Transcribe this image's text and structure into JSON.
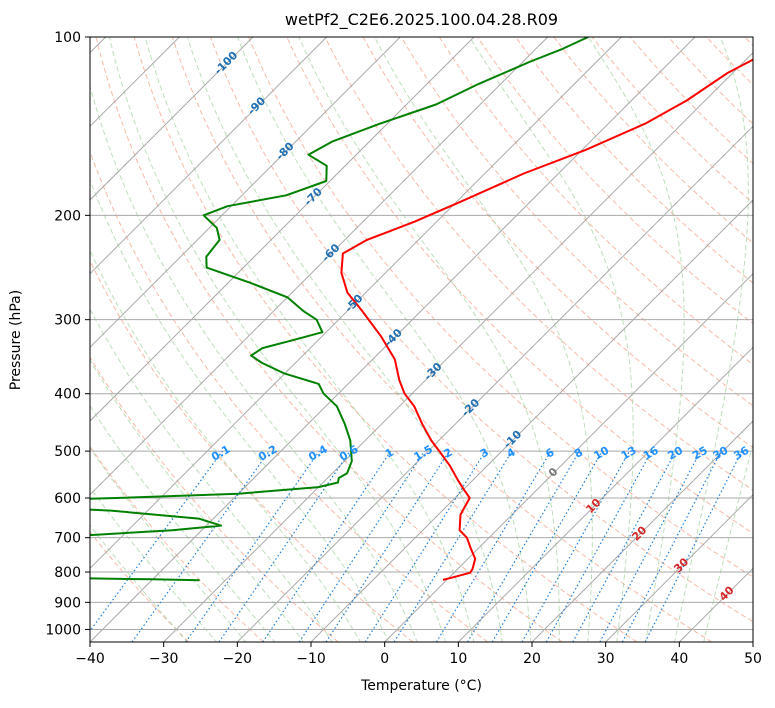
{
  "chart_data": {
    "type": "line",
    "title": "wetPf2_C2E6.2025.100.04.28.R09",
    "xlabel": "Temperature (°C)",
    "ylabel": "Pressure (hPa)",
    "xlim": [
      -40,
      50
    ],
    "ylim_pressure": [
      1050,
      100
    ],
    "y_scale": "log",
    "skew": true,
    "grid": true,
    "x_ticks": [
      "−40",
      "−30",
      "−20",
      "−10",
      "0",
      "10",
      "20",
      "30",
      "40",
      "50"
    ],
    "x_tick_values": [
      -40,
      -30,
      -20,
      -10,
      0,
      10,
      20,
      30,
      40,
      50
    ],
    "y_ticks": [
      "100",
      "200",
      "300",
      "400",
      "500",
      "600",
      "700",
      "800",
      "900",
      "1000"
    ],
    "y_tick_values": [
      100,
      200,
      300,
      400,
      500,
      600,
      700,
      800,
      900,
      1000
    ],
    "isotherm_labels": [
      {
        "t": -100,
        "text": "-100"
      },
      {
        "t": -90,
        "text": "-90"
      },
      {
        "t": -80,
        "text": "-80"
      },
      {
        "t": -70,
        "text": "-70"
      },
      {
        "t": -60,
        "text": "-60"
      },
      {
        "t": -50,
        "text": "-50"
      },
      {
        "t": -40,
        "text": "-40"
      },
      {
        "t": -30,
        "text": "-30"
      },
      {
        "t": -20,
        "text": "-20"
      },
      {
        "t": -10,
        "text": "-10"
      },
      {
        "t": 0,
        "text": "0"
      },
      {
        "t": 10,
        "text": "10"
      },
      {
        "t": 20,
        "text": "20"
      },
      {
        "t": 30,
        "text": "30"
      },
      {
        "t": 40,
        "text": "40"
      }
    ],
    "mixing_ratio_labels": [
      "0.1",
      "0.2",
      "0.4",
      "0.6",
      "1",
      "1.5",
      "2",
      "3",
      "4",
      "6",
      "8",
      "10",
      "13",
      "16",
      "20",
      "25",
      "30",
      "36"
    ],
    "mixing_ratio_values": [
      0.1,
      0.2,
      0.4,
      0.6,
      1,
      1.5,
      2,
      3,
      4,
      6,
      8,
      10,
      13,
      16,
      20,
      25,
      30,
      36
    ],
    "series": [
      {
        "color": "#ff0000",
        "points": [
          [
            100,
            -26.3
          ],
          [
            115,
            -30.7
          ],
          [
            128,
            -32.5
          ],
          [
            140,
            -35.0
          ],
          [
            155,
            -39.5
          ],
          [
            170,
            -44.7
          ],
          [
            190,
            -49.5
          ],
          [
            205,
            -53.0
          ],
          [
            220,
            -57.0
          ],
          [
            232,
            -58.4
          ],
          [
            250,
            -56.0
          ],
          [
            270,
            -52.5
          ],
          [
            290,
            -48.0
          ],
          [
            320,
            -42.0
          ],
          [
            350,
            -37.0
          ],
          [
            380,
            -33.5
          ],
          [
            400,
            -31.0
          ],
          [
            420,
            -28.0
          ],
          [
            450,
            -24.5
          ],
          [
            480,
            -21.0
          ],
          [
            500,
            -18.5
          ],
          [
            530,
            -15.0
          ],
          [
            560,
            -12.0
          ],
          [
            580,
            -10.0
          ],
          [
            600,
            -8.0
          ],
          [
            640,
            -7.0
          ],
          [
            680,
            -5.0
          ],
          [
            700,
            -3.0
          ],
          [
            730,
            -1.0
          ],
          [
            760,
            1.0
          ],
          [
            790,
            2.0
          ],
          [
            802,
            2.2
          ],
          [
            815,
            0.7
          ],
          [
            825,
            -0.5
          ]
        ]
      },
      {
        "color": "#008000",
        "points": [
          [
            100,
            -54.5
          ],
          [
            105,
            -56.5
          ],
          [
            110,
            -59.0
          ],
          [
            120,
            -63.0
          ],
          [
            130,
            -66.0
          ],
          [
            140,
            -71.0
          ],
          [
            150,
            -75.0
          ],
          [
            158,
            -76.5
          ],
          [
            165,
            -72.5
          ],
          [
            175,
            -70.5
          ],
          [
            185,
            -74.0
          ],
          [
            193,
            -80.5
          ],
          [
            200,
            -82.5
          ],
          [
            210,
            -79.0
          ],
          [
            220,
            -77.0
          ],
          [
            235,
            -76.5
          ],
          [
            245,
            -75.0
          ],
          [
            260,
            -67.0
          ],
          [
            275,
            -60.0
          ],
          [
            290,
            -56.0
          ],
          [
            300,
            -53.0
          ],
          [
            315,
            -50.5
          ],
          [
            325,
            -53.5
          ],
          [
            335,
            -56.5
          ],
          [
            345,
            -57.0
          ],
          [
            355,
            -54.5
          ],
          [
            370,
            -50.0
          ],
          [
            385,
            -44.0
          ],
          [
            400,
            -42.0
          ],
          [
            420,
            -38.5
          ],
          [
            450,
            -35.0
          ],
          [
            480,
            -32.0
          ],
          [
            520,
            -29.0
          ],
          [
            545,
            -28.0
          ],
          [
            555,
            -28.5
          ],
          [
            565,
            -28.0
          ],
          [
            575,
            -30.0
          ],
          [
            590,
            -40.0
          ],
          [
            600,
            -56.0
          ],
          [
            610,
            -75.0
          ],
          [
            615,
            -73.0
          ],
          [
            630,
            -55.0
          ],
          [
            650,
            -42.0
          ],
          [
            668,
            -38.0
          ],
          [
            680,
            -44.0
          ],
          [
            695,
            -56.0
          ],
          [
            705,
            -66.0
          ],
          [
            715,
            -62.0
          ],
          [
            725,
            -55.0
          ],
          [
            740,
            -54.0
          ],
          [
            755,
            -56.5
          ],
          [
            765,
            -62.0
          ],
          [
            770,
            -65.0
          ],
          [
            775,
            -61.0
          ],
          [
            785,
            -62.0
          ],
          [
            800,
            -64.5
          ],
          [
            812,
            -72.0
          ],
          [
            818,
            -55.0
          ],
          [
            823,
            -40.0
          ],
          [
            826,
            -33.5
          ]
        ]
      }
    ]
  }
}
